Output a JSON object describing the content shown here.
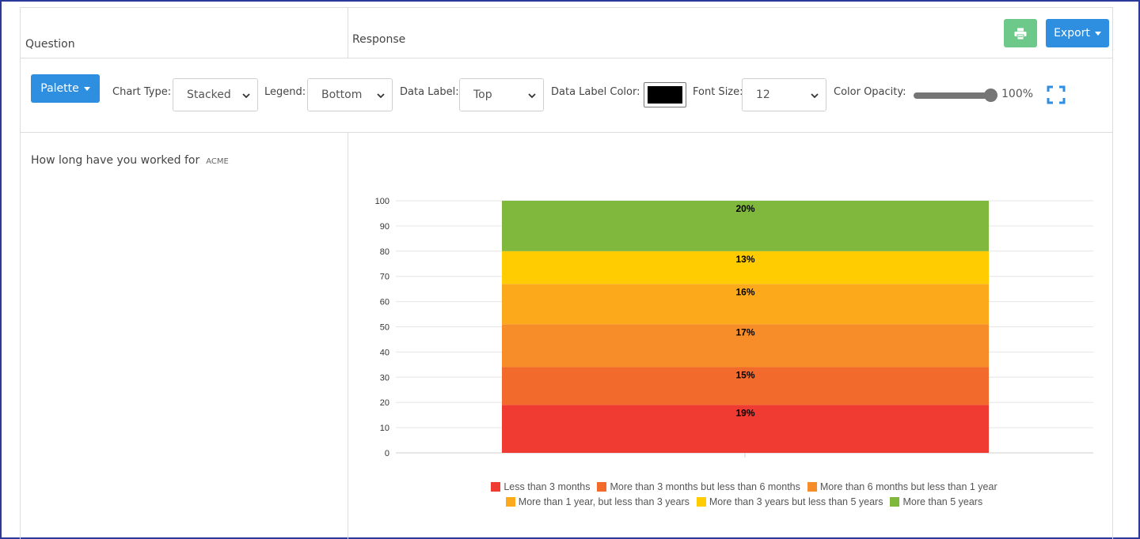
{
  "table": {
    "question_header": "Question",
    "response_header": "Response"
  },
  "actions": {
    "print_icon": "printer-icon",
    "export_label": "Export"
  },
  "toolbar": {
    "palette_label": "Palette",
    "chart_type_label": "Chart Type:",
    "chart_type_value": "Stacked",
    "legend_label": "Legend:",
    "legend_value": "Bottom",
    "data_label_label": "Data Label:",
    "data_label_value": "Top",
    "data_label_color_label": "Data Label Color:",
    "data_label_color": "#000000",
    "font_size_label": "Font Size:",
    "font_size_value": "12",
    "color_opacity_label": "Color Opacity:",
    "color_opacity_value": "100%",
    "color_opacity_level": 1.0,
    "expand_icon": "fullscreen-icon"
  },
  "question": {
    "text": "How long have you worked for",
    "tag": "ACME"
  },
  "colors": {
    "primary": "#2e8ee0",
    "success": "#6cc98a"
  },
  "chart_data": {
    "type": "bar",
    "stacked": true,
    "ylim": [
      0,
      100
    ],
    "yticks": [
      0,
      10,
      20,
      30,
      40,
      50,
      60,
      70,
      80,
      90,
      100
    ],
    "grid": true,
    "legend_position": "bottom",
    "categories": [
      ""
    ],
    "series": [
      {
        "name": "Less than 3 months",
        "values": [
          19
        ],
        "label": "19%",
        "color": "#ef3b32"
      },
      {
        "name": "More than 3 months but less than 6 months",
        "values": [
          15
        ],
        "label": "15%",
        "color": "#f26b2d"
      },
      {
        "name": "More than 6 months but less than 1 year",
        "values": [
          17
        ],
        "label": "17%",
        "color": "#f68d28"
      },
      {
        "name": "More than 1 year, but less than 3 years",
        "values": [
          16
        ],
        "label": "16%",
        "color": "#fcaa1c"
      },
      {
        "name": "More than 3 years but less than 5 years",
        "values": [
          13
        ],
        "label": "13%",
        "color": "#fecc00"
      },
      {
        "name": "More than 5 years",
        "values": [
          20
        ],
        "label": "20%",
        "color": "#80b73d"
      }
    ]
  }
}
